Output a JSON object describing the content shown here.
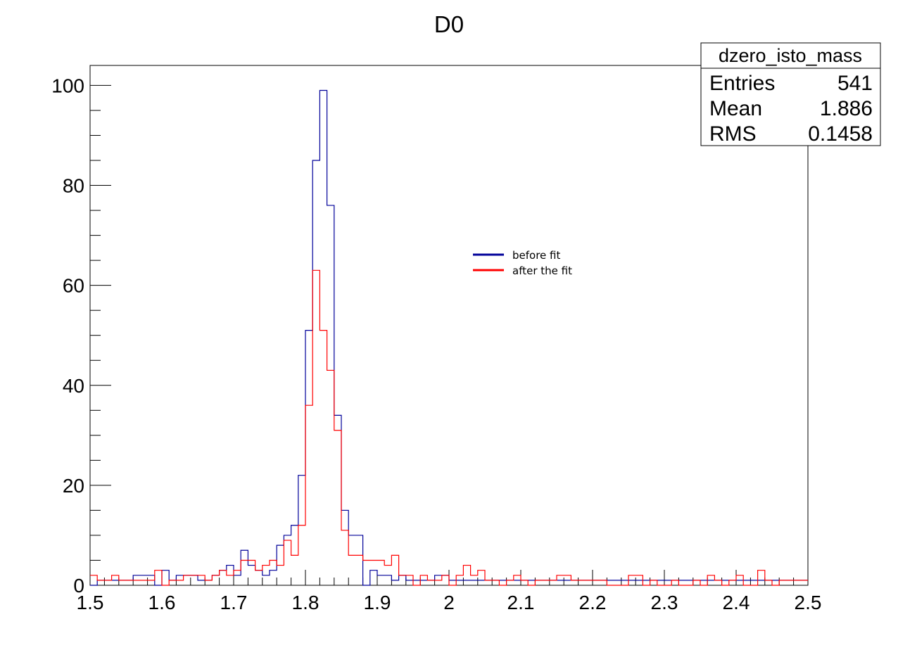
{
  "chart_data": {
    "type": "histogram",
    "title": "D0",
    "xlabel": "",
    "ylabel": "",
    "xlim": [
      1.5,
      2.5
    ],
    "ylim": [
      0,
      104
    ],
    "bin_width": 0.01,
    "x_ticks": [
      "1.5",
      "1.6",
      "1.7",
      "1.8",
      "1.9",
      "2",
      "2.1",
      "2.2",
      "2.3",
      "2.4",
      "2.5"
    ],
    "y_ticks": [
      "0",
      "20",
      "40",
      "60",
      "80",
      "100"
    ],
    "grid": false,
    "legend_position": "center-right",
    "stats_box": {
      "name": "dzero_isto_mass",
      "rows": [
        {
          "label": "Entries",
          "value": "541"
        },
        {
          "label": "Mean",
          "value": "1.886"
        },
        {
          "label": "RMS",
          "value": "0.1458"
        }
      ]
    },
    "series": [
      {
        "name": "before fit",
        "color": "#000099",
        "values": [
          0,
          1,
          1,
          1,
          1,
          1,
          2,
          2,
          2,
          0,
          3,
          1,
          2,
          2,
          2,
          1,
          1,
          2,
          3,
          4,
          2,
          7,
          4,
          3,
          2,
          3,
          8,
          10,
          12,
          22,
          51,
          85,
          99,
          76,
          34,
          15,
          10,
          10,
          0,
          3,
          2,
          2,
          1,
          2,
          1,
          1,
          1,
          1,
          2,
          2,
          1,
          1,
          1,
          1,
          1,
          1,
          1,
          1,
          1,
          1,
          1,
          1,
          1,
          1,
          1,
          1,
          1,
          1,
          1,
          1,
          1,
          1,
          1,
          1,
          1,
          1,
          1,
          1,
          1,
          1,
          1,
          1,
          1,
          1,
          1,
          1,
          1,
          1,
          1,
          1,
          1,
          1,
          1,
          1,
          1,
          1,
          1,
          1,
          1,
          1
        ]
      },
      {
        "name": "after the fit",
        "color": "#ff0000",
        "values": [
          2,
          1,
          1,
          2,
          1,
          1,
          1,
          1,
          1,
          3,
          0,
          1,
          1,
          2,
          2,
          2,
          1,
          2,
          3,
          2,
          3,
          5,
          5,
          3,
          4,
          5,
          4,
          9,
          6,
          12,
          36,
          63,
          51,
          43,
          31,
          11,
          6,
          6,
          5,
          5,
          5,
          4,
          6,
          2,
          2,
          0,
          2,
          1,
          1,
          2,
          0,
          2,
          4,
          2,
          3,
          1,
          1,
          0,
          1,
          2,
          1,
          0,
          1,
          1,
          1,
          2,
          2,
          1,
          1,
          1,
          1,
          1,
          0,
          0,
          0,
          2,
          2,
          0,
          1,
          0,
          0,
          1,
          0,
          0,
          1,
          0,
          2,
          1,
          0,
          1,
          2,
          0,
          0,
          3,
          1,
          0,
          1,
          1,
          1,
          1
        ]
      }
    ]
  }
}
